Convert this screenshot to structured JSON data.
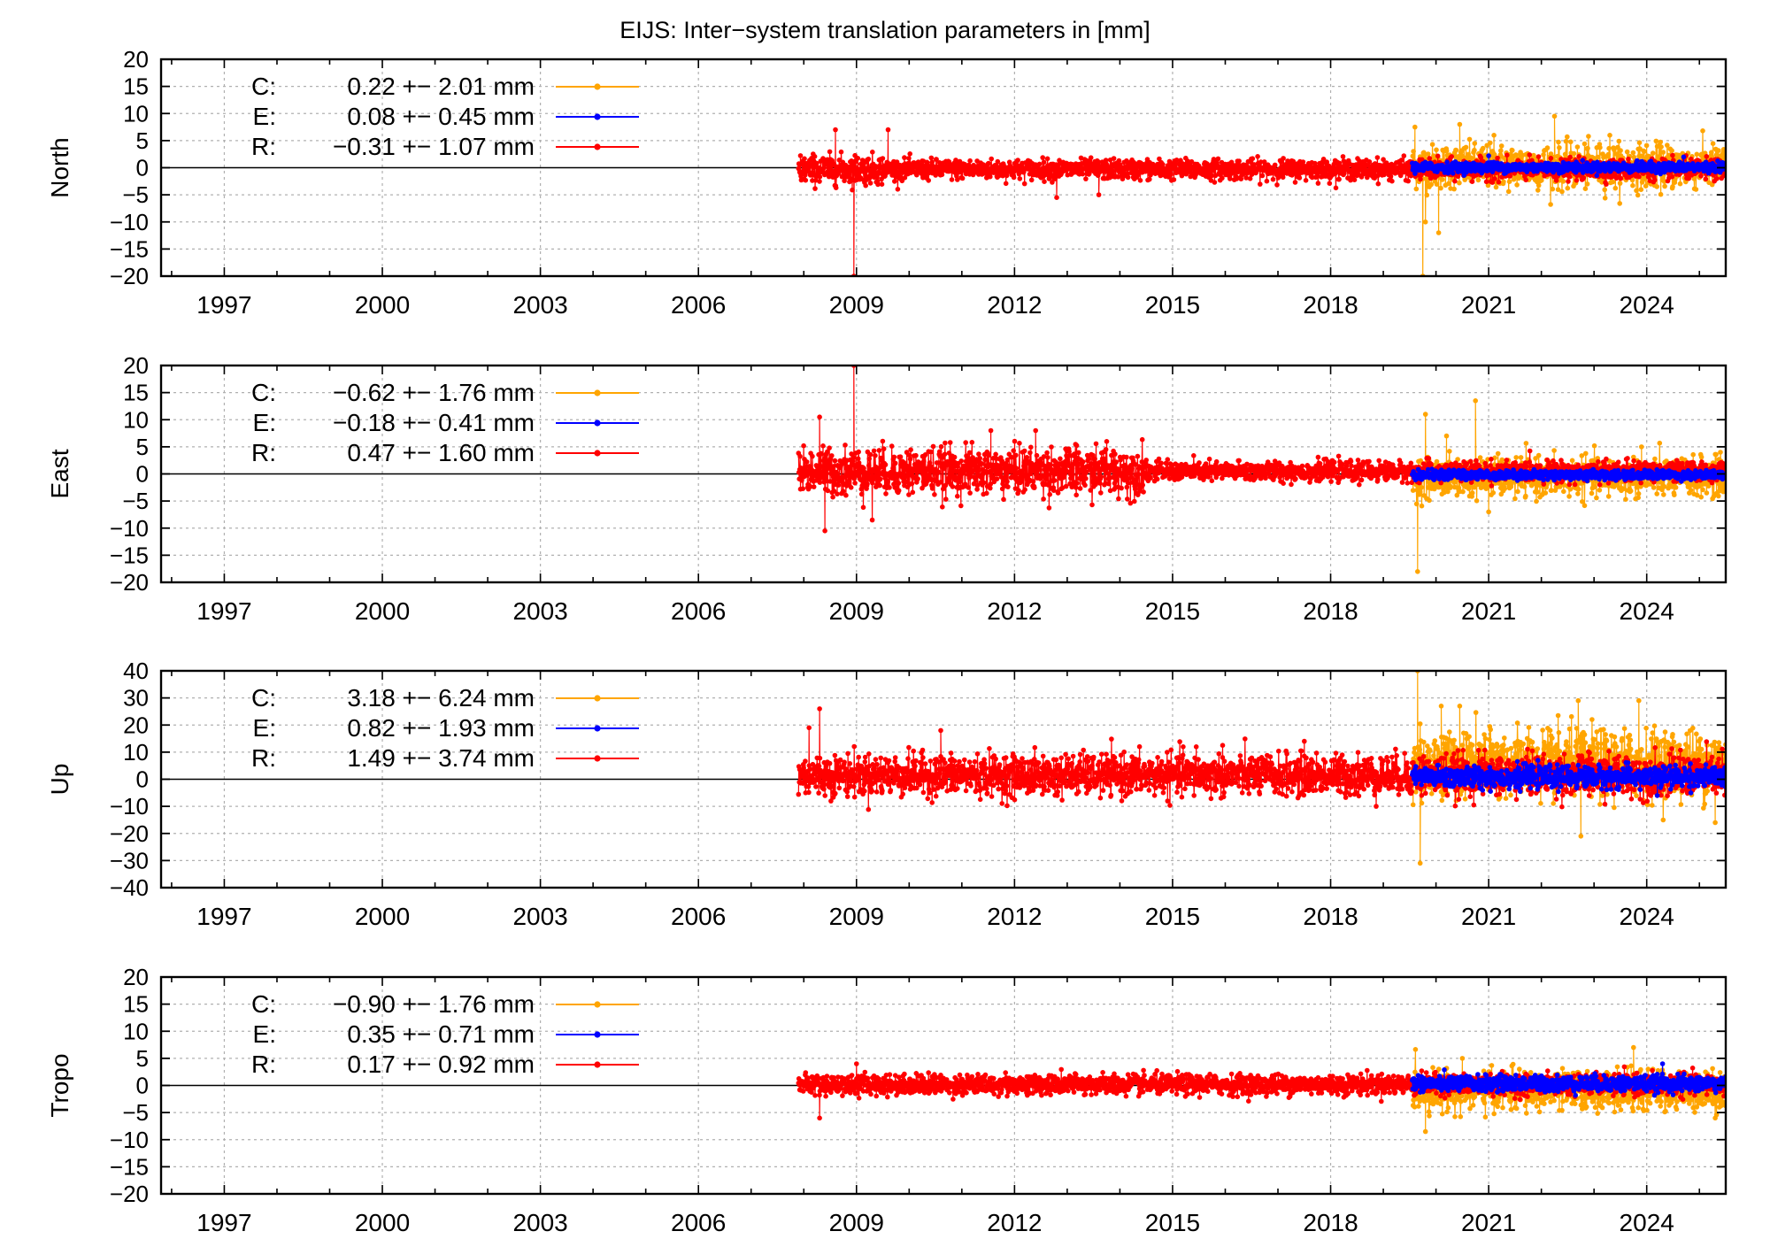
{
  "title": "EIJS: Inter−system translation parameters in [mm]",
  "colors": {
    "C": "#ffa500",
    "E": "#0000ff",
    "R": "#ff0000",
    "frame": "#000000",
    "grid": "#b0b0b0"
  },
  "chart_data": [
    {
      "type": "line",
      "ylabel": "North",
      "ylim": [
        -20,
        20
      ],
      "yticks": [
        "20",
        "15",
        "10",
        "5",
        "0",
        "−5",
        "−10",
        "−15",
        "−20"
      ],
      "xlim": [
        1995.8,
        2025.5
      ],
      "xticks": [
        "1997",
        "2000",
        "2003",
        "2006",
        "2009",
        "2012",
        "2015",
        "2018",
        "2021",
        "2024"
      ],
      "grid": true,
      "legend_position": "top-left",
      "legend": [
        {
          "key": "C:",
          "text": "0.22 +− 2.01 mm"
        },
        {
          "key": "E:",
          "text": "0.08 +− 0.45 mm"
        },
        {
          "key": "R:",
          "text": "−0.31 +− 1.07 mm"
        }
      ],
      "series": [
        {
          "name": "C",
          "x_range": [
            2019.55,
            2025.5
          ],
          "mean": 0.22,
          "std": 2.01,
          "outliers": [
            [
              2019.6,
              7.5
            ],
            [
              2019.75,
              -20
            ],
            [
              2019.8,
              -10
            ],
            [
              2020.05,
              -12
            ],
            [
              2020.45,
              8
            ],
            [
              2021.1,
              6
            ],
            [
              2022.25,
              9.5
            ],
            [
              2023.3,
              6
            ]
          ]
        },
        {
          "name": "E",
          "x_range": [
            2019.55,
            2025.5
          ],
          "mean": 0.08,
          "std": 0.45,
          "outliers": [
            [
              2021.0,
              2.2
            ],
            [
              2024.7,
              2.0
            ]
          ]
        },
        {
          "name": "R",
          "x_range": [
            2007.9,
            2025.5
          ],
          "mean": -0.31,
          "std": 1.07,
          "outliers": [
            [
              2008.6,
              7
            ],
            [
              2008.95,
              -20
            ],
            [
              2009.6,
              7
            ],
            [
              2012.8,
              -5.5
            ],
            [
              2013.6,
              -5
            ]
          ]
        }
      ]
    },
    {
      "type": "line",
      "ylabel": "East",
      "ylim": [
        -20,
        20
      ],
      "yticks": [
        "20",
        "15",
        "10",
        "5",
        "0",
        "−5",
        "−10",
        "−15",
        "−20"
      ],
      "xlim": [
        1995.8,
        2025.5
      ],
      "xticks": [
        "1997",
        "2000",
        "2003",
        "2006",
        "2009",
        "2012",
        "2015",
        "2018",
        "2021",
        "2024"
      ],
      "grid": true,
      "legend_position": "top-left",
      "legend": [
        {
          "key": "C:",
          "text": "−0.62 +− 1.76 mm"
        },
        {
          "key": "E:",
          "text": "−0.18 +− 0.41 mm"
        },
        {
          "key": "R:",
          "text": "0.47 +− 1.60 mm"
        }
      ],
      "series": [
        {
          "name": "C",
          "x_range": [
            2019.55,
            2025.5
          ],
          "mean": -0.62,
          "std": 1.76,
          "outliers": [
            [
              2019.65,
              -18
            ],
            [
              2019.8,
              11
            ],
            [
              2020.2,
              7
            ],
            [
              2020.75,
              13.5
            ],
            [
              2021.0,
              -7
            ],
            [
              2023.9,
              5
            ],
            [
              2025.4,
              4
            ]
          ]
        },
        {
          "name": "E",
          "x_range": [
            2019.55,
            2025.5
          ],
          "mean": -0.18,
          "std": 0.41,
          "outliers": []
        },
        {
          "name": "R",
          "x_range": [
            2007.9,
            2025.5
          ],
          "mean": 0.47,
          "std": 1.6,
          "outliers": [
            [
              2008.3,
              10.5
            ],
            [
              2008.4,
              -10.5
            ],
            [
              2008.95,
              20
            ],
            [
              2009.3,
              -8.5
            ],
            [
              2011.55,
              8
            ],
            [
              2012.4,
              8
            ],
            [
              2013.75,
              6
            ]
          ]
        }
      ]
    },
    {
      "type": "line",
      "ylabel": "Up",
      "ylim": [
        -40,
        40
      ],
      "yticks": [
        "40",
        "30",
        "20",
        "10",
        "0",
        "−10",
        "−20",
        "−30",
        "−40"
      ],
      "xlim": [
        1995.8,
        2025.5
      ],
      "xticks": [
        "1997",
        "2000",
        "2003",
        "2006",
        "2009",
        "2012",
        "2015",
        "2018",
        "2021",
        "2024"
      ],
      "grid": true,
      "legend_position": "top-left",
      "legend": [
        {
          "key": "C:",
          "text": "3.18 +− 6.24 mm"
        },
        {
          "key": "E:",
          "text": "0.82 +− 1.93 mm"
        },
        {
          "key": "R:",
          "text": "1.49 +− 3.74 mm"
        }
      ],
      "series": [
        {
          "name": "C",
          "x_range": [
            2019.55,
            2025.5
          ],
          "mean": 3.18,
          "std": 6.24,
          "outliers": [
            [
              2019.65,
              40
            ],
            [
              2019.7,
              -31
            ],
            [
              2020.1,
              27
            ],
            [
              2020.45,
              27
            ],
            [
              2022.7,
              29
            ],
            [
              2022.75,
              -21
            ],
            [
              2023.85,
              29
            ],
            [
              2025.3,
              -16
            ]
          ]
        },
        {
          "name": "E",
          "x_range": [
            2019.55,
            2025.5
          ],
          "mean": 0.82,
          "std": 1.93,
          "outliers": [
            [
              2021.6,
              -4.5
            ],
            [
              2024.2,
              -6
            ]
          ]
        },
        {
          "name": "R",
          "x_range": [
            2007.9,
            2025.5
          ],
          "mean": 1.49,
          "std": 3.74,
          "outliers": [
            [
              2008.3,
              26
            ],
            [
              2008.1,
              19
            ],
            [
              2010.6,
              18
            ],
            [
              2015.2,
              12
            ],
            [
              2015.45,
              12
            ],
            [
              2015.95,
              12.5
            ],
            [
              2017.5,
              14
            ]
          ]
        }
      ]
    },
    {
      "type": "line",
      "ylabel": "Tropo",
      "ylim": [
        -20,
        20
      ],
      "yticks": [
        "20",
        "15",
        "10",
        "5",
        "0",
        "−5",
        "−10",
        "−15",
        "−20"
      ],
      "xlim": [
        1995.8,
        2025.5
      ],
      "xticks": [
        "1997",
        "2000",
        "2003",
        "2006",
        "2009",
        "2012",
        "2015",
        "2018",
        "2021",
        "2024"
      ],
      "grid": true,
      "legend_position": "top-left",
      "legend": [
        {
          "key": "C:",
          "text": "−0.90 +− 1.76 mm"
        },
        {
          "key": "E:",
          "text": "0.35 +− 0.71 mm"
        },
        {
          "key": "R:",
          "text": "0.17 +− 0.92 mm"
        }
      ],
      "series": [
        {
          "name": "C",
          "x_range": [
            2019.55,
            2025.5
          ],
          "mean": -0.9,
          "std": 1.76,
          "outliers": [
            [
              2019.8,
              -8.5
            ],
            [
              2020.5,
              5
            ],
            [
              2023.75,
              7
            ],
            [
              2025.3,
              -6
            ]
          ]
        },
        {
          "name": "E",
          "x_range": [
            2019.55,
            2025.5
          ],
          "mean": 0.35,
          "std": 0.71,
          "outliers": [
            [
              2024.3,
              4
            ]
          ]
        },
        {
          "name": "R",
          "x_range": [
            2007.9,
            2025.5
          ],
          "mean": 0.17,
          "std": 0.92,
          "outliers": [
            [
              2008.3,
              -6
            ],
            [
              2009.0,
              4
            ]
          ]
        }
      ]
    }
  ]
}
